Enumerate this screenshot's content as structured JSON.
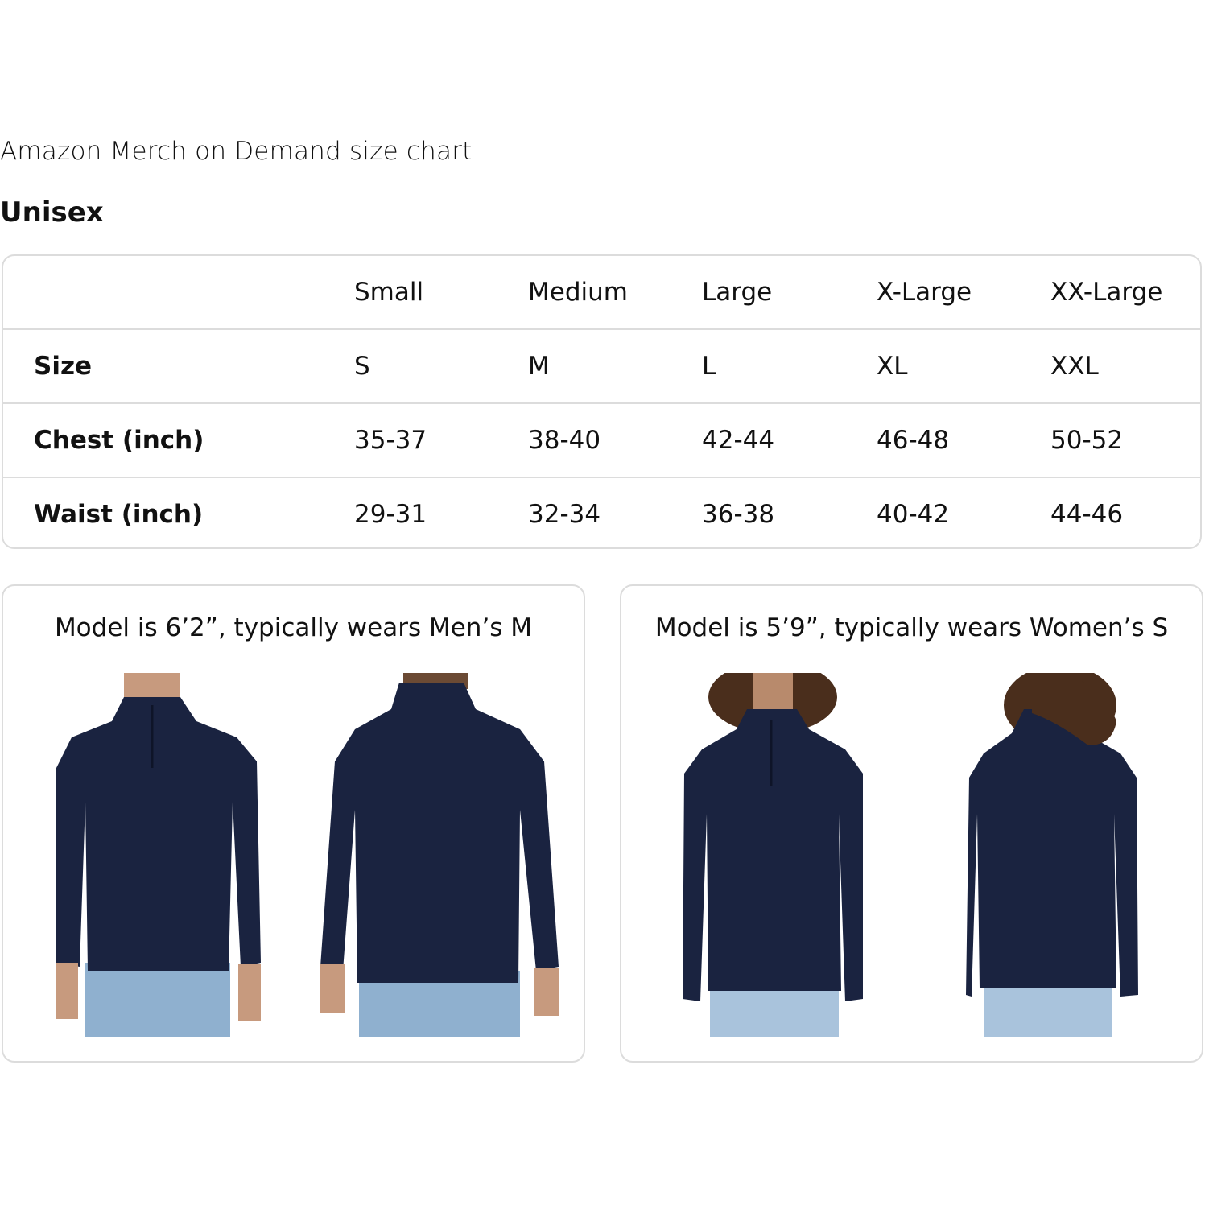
{
  "title": "Amazon Merch on Demand size chart",
  "subtitle": "Unisex",
  "table": {
    "columns": [
      "",
      "Small",
      "Medium",
      "Large",
      "X-Large",
      "XX-Large"
    ],
    "rows": [
      {
        "label": "Size",
        "values": [
          "S",
          "M",
          "L",
          "XL",
          "XXL"
        ]
      },
      {
        "label": "Chest (inch)",
        "values": [
          "35-37",
          "38-40",
          "42-44",
          "46-48",
          "50-52"
        ]
      },
      {
        "label": "Waist (inch)",
        "values": [
          "29-31",
          "32-34",
          "36-38",
          "40-42",
          "44-46"
        ]
      }
    ]
  },
  "models": [
    {
      "caption": "Model is 6’2”, typically wears Men’s M"
    },
    {
      "caption": "Model is 5’9”, typically wears Women’s S"
    }
  ],
  "colors": {
    "shirt": "#1a2340",
    "jeans": "#8fb0cf",
    "border": "#dcdcdc"
  }
}
